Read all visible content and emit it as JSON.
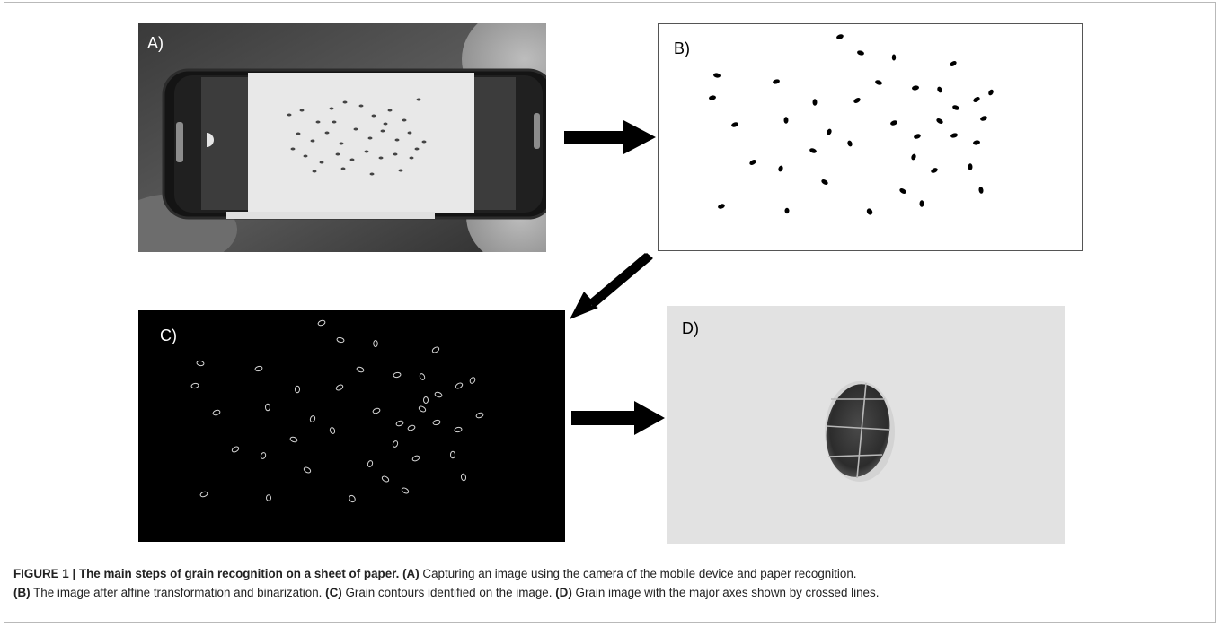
{
  "figure": {
    "panels": {
      "a": {
        "label": "A)"
      },
      "b": {
        "label": "B)"
      },
      "c": {
        "label": "C)"
      },
      "d": {
        "label": "D)"
      }
    },
    "caption": {
      "title": "FIGURE 1 | The main steps of grain recognition on a sheet of paper.",
      "a_ref": "(A)",
      "a_text": "Capturing an image using the camera of the mobile device and paper recognition.",
      "b_ref": "(B)",
      "b_text": "The image after affine transformation and binarization.",
      "c_ref": "(C)",
      "c_text": "Grain contours identified on the image.",
      "d_ref": "(D)",
      "d_text": "Grain image with the major axes shown by crossed lines."
    }
  },
  "colors": {
    "caption_text": "#222222",
    "frame": "#b9b9b9",
    "arrow": "#000000",
    "panel_c_background": "#000000",
    "panel_d_background": "#e2e2e2"
  }
}
